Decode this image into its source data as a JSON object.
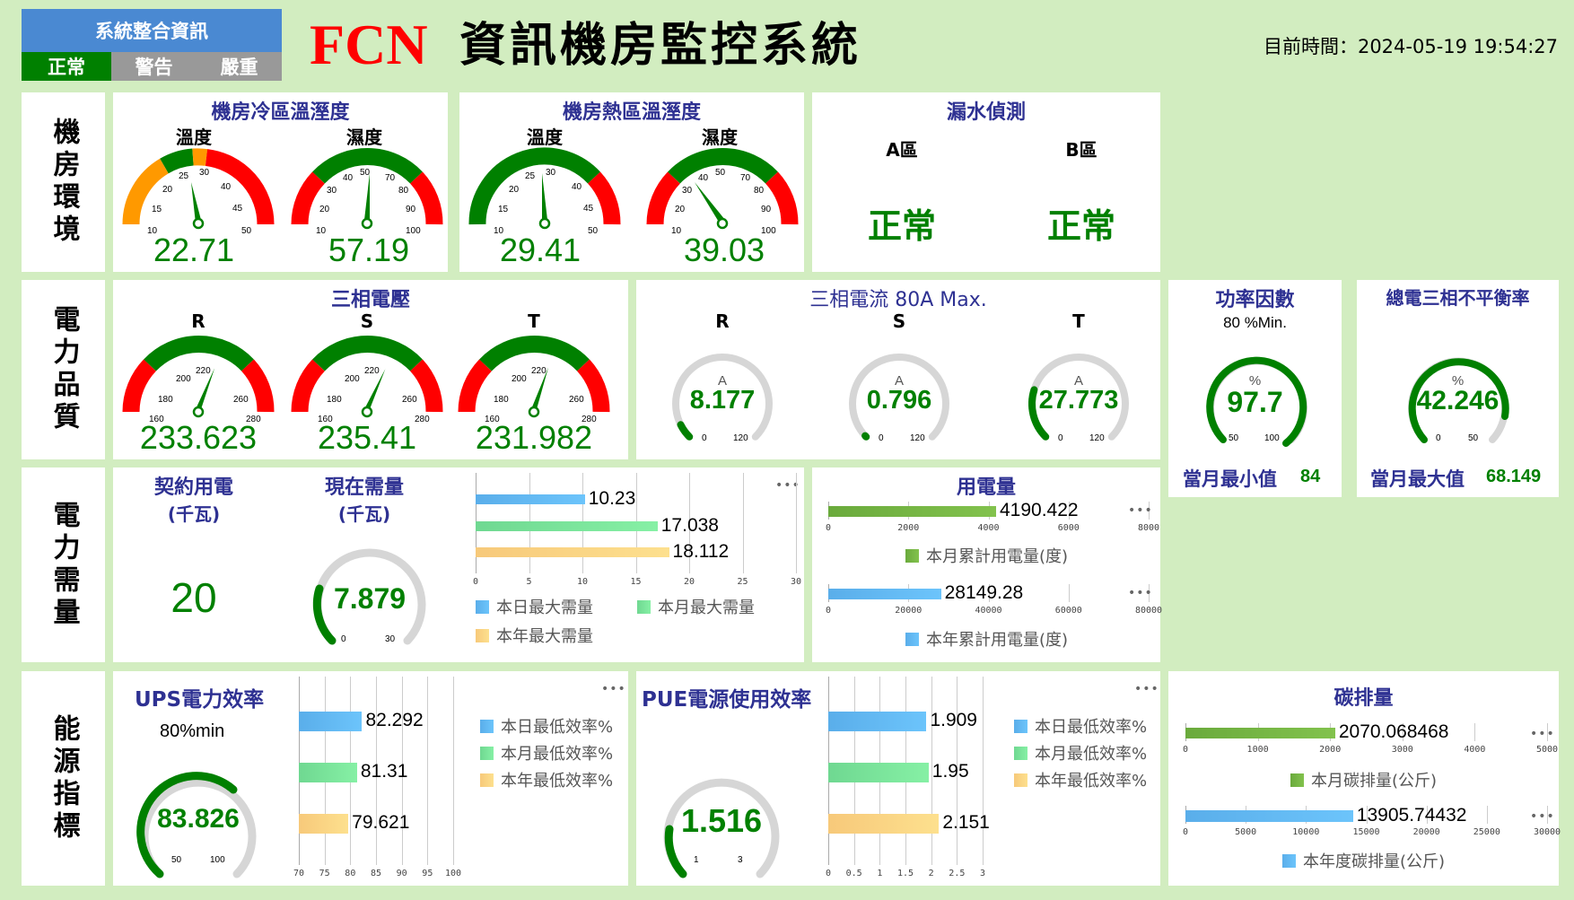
{
  "header": {
    "status_box_title": "系統整合資訊",
    "status_levels": [
      {
        "label": "正常",
        "active": true
      },
      {
        "label": "警告",
        "active": false
      },
      {
        "label": "嚴重",
        "active": false
      }
    ],
    "brand": "FCN",
    "title": "資訊機房監控系統",
    "time_label": "目前時間：",
    "time_value": "2024-05-19 19:54:27"
  },
  "rows": {
    "environment": "機房環境",
    "power_quality": "電力品質",
    "power_demand": "電力需量",
    "energy": "能源指標"
  },
  "cold_zone": {
    "title": "機房冷區溫溼度",
    "temperature": {
      "label": "溫度",
      "value": "22.71",
      "ticks": [
        "10",
        "15",
        "20",
        "25",
        "30",
        "40",
        "45",
        "50"
      ]
    },
    "humidity": {
      "label": "濕度",
      "value": "57.19",
      "ticks": [
        "10",
        "20",
        "30",
        "40",
        "50",
        "70",
        "80",
        "90",
        "100"
      ]
    }
  },
  "hot_zone": {
    "title": "機房熱區溫溼度",
    "temperature": {
      "label": "溫度",
      "value": "29.41",
      "ticks": [
        "10",
        "15",
        "20",
        "25",
        "30",
        "40",
        "45",
        "50"
      ]
    },
    "humidity": {
      "label": "濕度",
      "value": "39.03",
      "ticks": [
        "10",
        "20",
        "30",
        "40",
        "50",
        "70",
        "80",
        "90",
        "100"
      ]
    }
  },
  "leak": {
    "title": "漏水偵測",
    "zones": [
      {
        "label": "A區",
        "status": "正常"
      },
      {
        "label": "B區",
        "status": "正常"
      }
    ]
  },
  "voltage": {
    "title": "三相電壓",
    "ticks": [
      "160",
      "180",
      "200",
      "220",
      "260",
      "280"
    ],
    "phases": [
      {
        "label": "R",
        "value": "233.623"
      },
      {
        "label": "S",
        "value": "235.41"
      },
      {
        "label": "T",
        "value": "231.982"
      }
    ]
  },
  "current": {
    "title": "三相電流 80A Max.",
    "unit": "A",
    "min": "0",
    "max": "120",
    "phases": [
      {
        "label": "R",
        "value": "8.177"
      },
      {
        "label": "S",
        "value": "0.796"
      },
      {
        "label": "T",
        "value": "27.773"
      }
    ]
  },
  "power_factor": {
    "title": "功率因數",
    "subtitle": "80 %Min.",
    "unit": "%",
    "value": "97.7",
    "min": "50",
    "max": "100",
    "footer_label": "當月最小值",
    "footer_value": "84"
  },
  "imbalance": {
    "title": "總電三相不平衡率",
    "unit": "%",
    "value": "42.246",
    "min": "0",
    "max": "50",
    "footer_label": "當月最大值",
    "footer_value": "68.149"
  },
  "demand": {
    "contract_title": "契約用電",
    "contract_unit": "(千瓦)",
    "contract_value": "20",
    "current_title": "現在需量",
    "current_unit": "(千瓦)",
    "current_value": "7.879",
    "current_min": "0",
    "current_max": "30",
    "menu": "•••"
  },
  "usage": {
    "title": "用電量",
    "menu": "•••"
  },
  "ups": {
    "title": "UPS電力效率",
    "subtitle": "80%min",
    "value": "83.826",
    "min": "50",
    "max": "100",
    "menu": "•••"
  },
  "pue": {
    "title": "PUE電源使用效率",
    "value": "1.516",
    "min": "1",
    "max": "3",
    "menu": "•••"
  },
  "carbon": {
    "title": "碳排量",
    "menu": "•••"
  },
  "colors": {
    "background": "#d2edc0",
    "title_blue": "#2e3192",
    "value_green": "#008000",
    "gauge_red": "#ff0000",
    "gauge_orange": "#ff9900",
    "gauge_green": "#008000",
    "bar_blue": "#66bbf5",
    "bar_green": "#7fe39a",
    "bar_yellow": "#fcd68a",
    "bar_olive": "#74b84a",
    "status_blue": "#4a89d2"
  },
  "chart_data": [
    {
      "type": "bar",
      "orientation": "horizontal",
      "title": "需量",
      "categories": [
        "本日最大需量",
        "本月最大需量",
        "本年最大需量"
      ],
      "values": [
        10.23,
        17.038,
        18.112
      ],
      "xlim": [
        0,
        30
      ],
      "xticks": [
        "0",
        "5",
        "10",
        "15",
        "20",
        "25",
        "30"
      ],
      "legend": [
        "本日最大需量",
        "本月最大需量",
        "本年最大需量"
      ],
      "legend_position": "bottom"
    },
    {
      "type": "bar",
      "orientation": "horizontal",
      "title": "用電量",
      "categories": [
        "本月累計用電量(度)"
      ],
      "values": [
        4190.422
      ],
      "xlim": [
        0,
        8000
      ],
      "xticks": [
        "0",
        "2000",
        "4000",
        "6000",
        "8000"
      ],
      "legend": [
        "本月累計用電量(度)"
      ]
    },
    {
      "type": "bar",
      "orientation": "horizontal",
      "categories": [
        "本年累計用電量(度)"
      ],
      "values": [
        28149.28
      ],
      "xlim": [
        0,
        80000
      ],
      "xticks": [
        "0",
        "20000",
        "40000",
        "60000",
        "80000"
      ],
      "legend": [
        "本年累計用電量(度)"
      ]
    },
    {
      "type": "bar",
      "orientation": "horizontal",
      "title": "UPS電力效率",
      "categories": [
        "本日最低效率%",
        "本月最低效率%",
        "本年最低效率%"
      ],
      "values": [
        82.292,
        81.31,
        79.621
      ],
      "xlim": [
        70,
        100
      ],
      "xticks": [
        "70",
        "75",
        "80",
        "85",
        "90",
        "95",
        "100"
      ],
      "legend": [
        "本日最低效率%",
        "本月最低效率%",
        "本年最低效率%"
      ],
      "legend_position": "right"
    },
    {
      "type": "bar",
      "orientation": "horizontal",
      "title": "PUE電源使用效率",
      "categories": [
        "本日最低效率%",
        "本月最低效率%",
        "本年最低效率%"
      ],
      "values": [
        1.909,
        1.95,
        2.151
      ],
      "xlim": [
        0,
        3
      ],
      "xticks": [
        "0",
        "0.5",
        "1",
        "1.5",
        "2",
        "2.5",
        "3"
      ],
      "legend": [
        "本日最低效率%",
        "本月最低效率%",
        "本年最低效率%"
      ],
      "legend_position": "right"
    },
    {
      "type": "bar",
      "orientation": "horizontal",
      "title": "碳排量",
      "categories": [
        "本月碳排量(公斤)"
      ],
      "values": [
        2070.068468
      ],
      "xlim": [
        0,
        5000
      ],
      "xticks": [
        "0",
        "1000",
        "2000",
        "3000",
        "4000",
        "5000"
      ],
      "legend": [
        "本月碳排量(公斤)"
      ]
    },
    {
      "type": "bar",
      "orientation": "horizontal",
      "categories": [
        "本年度碳排量(公斤)"
      ],
      "values": [
        13905.74432
      ],
      "xlim": [
        0,
        30000
      ],
      "xticks": [
        "0",
        "5000",
        "10000",
        "15000",
        "20000",
        "25000",
        "30000"
      ],
      "legend": [
        "本年度碳排量(公斤)"
      ]
    }
  ]
}
